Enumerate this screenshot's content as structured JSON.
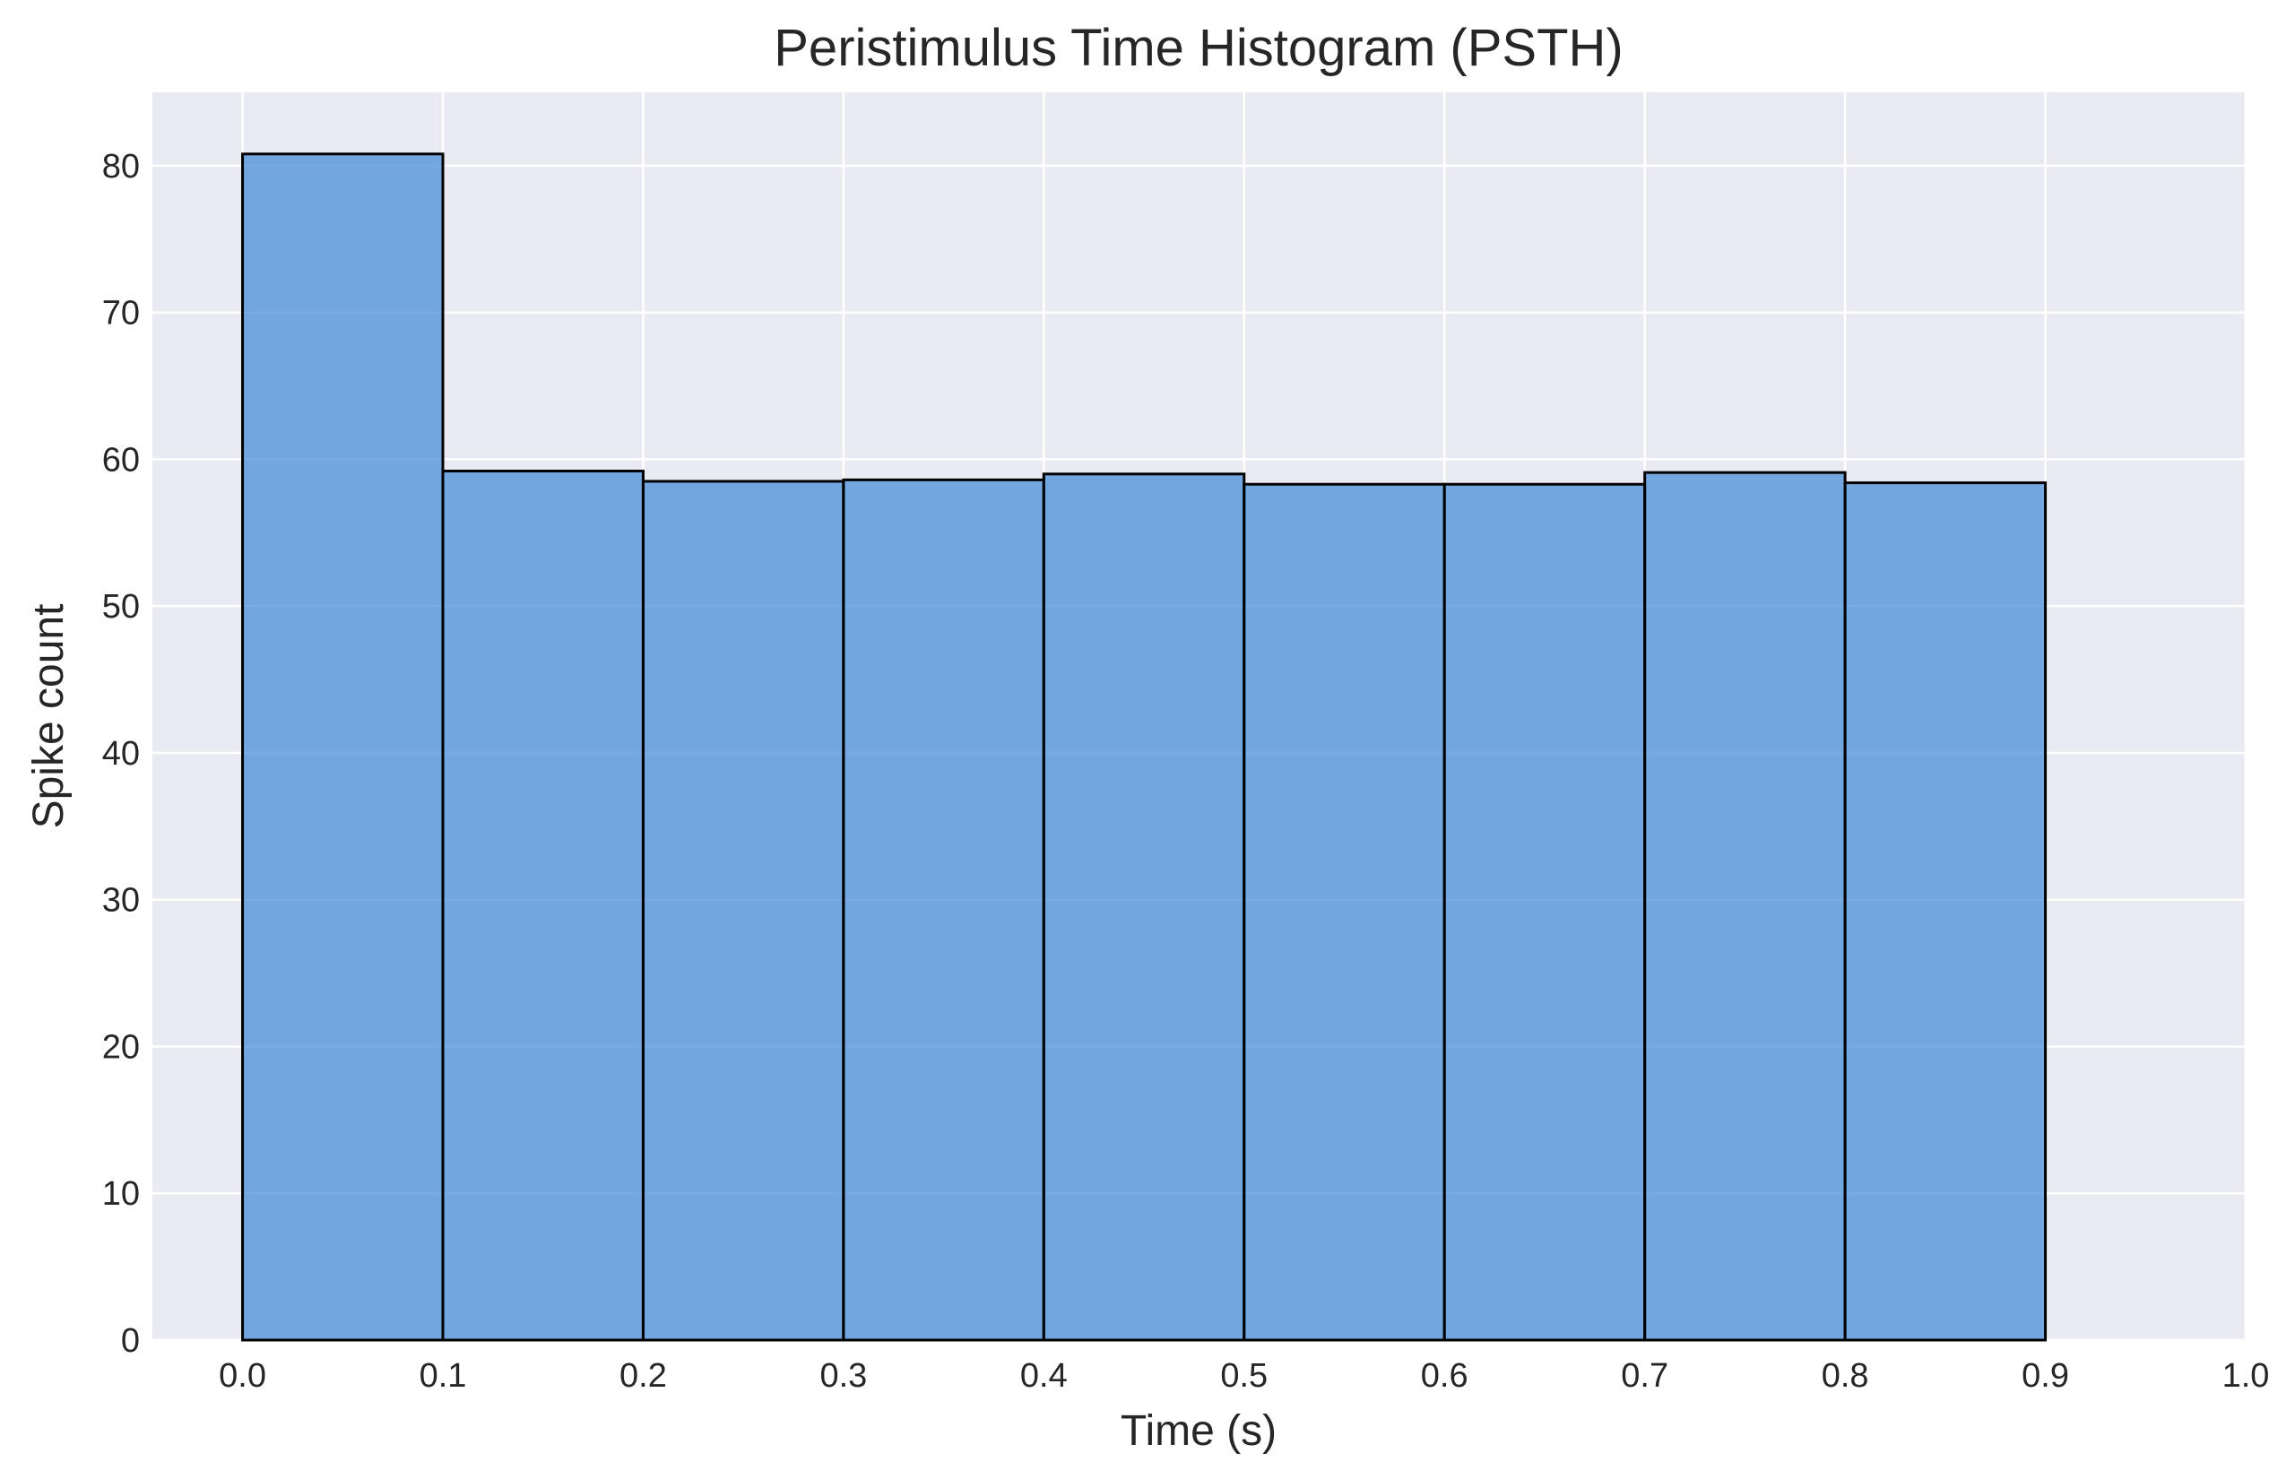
{
  "chart_data": {
    "type": "bar",
    "title": "Peristimulus Time Histogram (PSTH)",
    "xlabel": "Time (s)",
    "ylabel": "Spike count",
    "bin_edges": [
      0.0,
      0.1,
      0.2,
      0.3,
      0.4,
      0.5,
      0.6,
      0.7,
      0.8,
      0.9
    ],
    "values": [
      80.8,
      59.2,
      58.5,
      58.6,
      59.0,
      58.3,
      58.3,
      59.1,
      58.4
    ],
    "xlim": [
      -0.045,
      1.0
    ],
    "ylim": [
      0,
      85
    ],
    "x_ticks": [
      0.0,
      0.1,
      0.2,
      0.3,
      0.4,
      0.5,
      0.6,
      0.7,
      0.8,
      0.9,
      1.0
    ],
    "x_tick_labels": [
      "0.0",
      "0.1",
      "0.2",
      "0.3",
      "0.4",
      "0.5",
      "0.6",
      "0.7",
      "0.8",
      "0.9",
      "1.0"
    ],
    "y_ticks": [
      0,
      10,
      20,
      30,
      40,
      50,
      60,
      70,
      80
    ],
    "y_tick_labels": [
      "0",
      "10",
      "20",
      "30",
      "40",
      "50",
      "60",
      "70",
      "80"
    ],
    "grid": true,
    "legend": "none",
    "colors": {
      "bar_fill": "#4a8fd8",
      "bar_edge": "#000000",
      "plot_background": "#eaeaf2",
      "grid": "#ffffff"
    }
  }
}
